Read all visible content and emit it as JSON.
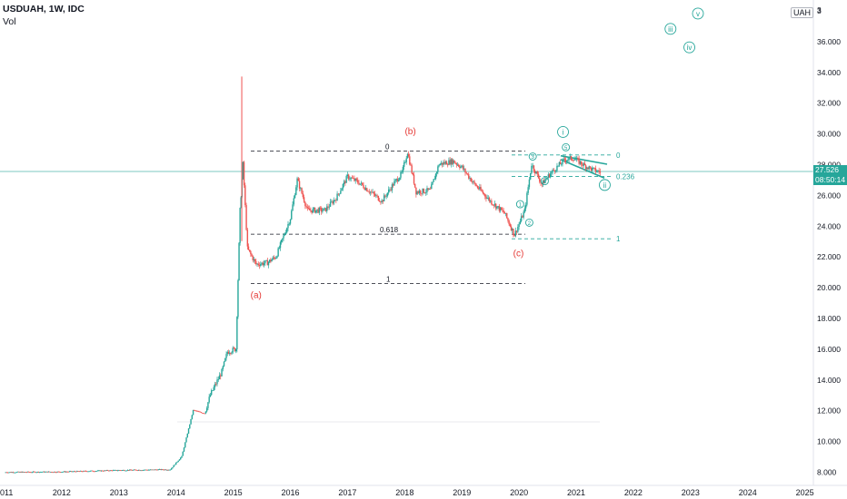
{
  "header": {
    "title": "USDUAH, 1W, IDC",
    "volume_label": "Vol"
  },
  "scale": {
    "currency": "UAH",
    "current_price": "27.526",
    "countdown": "08:50:14"
  },
  "colors": {
    "up": "#26a69a",
    "down": "#ef5350",
    "wave_label_red": "#e53935",
    "wave_label_teal": "#26a69a",
    "fib_line": "#131722",
    "current_line": "#26a69a"
  },
  "chart_data": {
    "type": "candlestick",
    "title": "USDUAH, 1W, IDC",
    "x_ticks": [
      "011",
      "2012",
      "2013",
      "2014",
      "2015",
      "2016",
      "2017",
      "2018",
      "2019",
      "2020",
      "2021",
      "2022",
      "2023",
      "2024",
      "2025"
    ],
    "y_ticks": [
      "8.000",
      "10.000",
      "12.000",
      "14.000",
      "16.000",
      "18.000",
      "20.000",
      "22.000",
      "24.000",
      "26.000",
      "28.000",
      "30.000",
      "32.000",
      "34.000",
      "36.000",
      "3"
    ],
    "ylim": [
      7.8,
      38.2
    ],
    "price_path": [
      [
        2011.0,
        7.97
      ],
      [
        2012.0,
        8.0
      ],
      [
        2013.0,
        8.1
      ],
      [
        2013.9,
        8.15
      ],
      [
        2014.1,
        9.0
      ],
      [
        2014.2,
        10.5
      ],
      [
        2014.3,
        12.0
      ],
      [
        2014.5,
        11.8
      ],
      [
        2014.6,
        13.0
      ],
      [
        2014.8,
        14.5
      ],
      [
        2014.9,
        15.8
      ],
      [
        2015.05,
        16.0
      ],
      [
        2015.12,
        25.0
      ],
      [
        2015.17,
        28.0
      ],
      [
        2015.25,
        22.5
      ],
      [
        2015.4,
        21.5
      ],
      [
        2015.6,
        21.6
      ],
      [
        2015.75,
        22.0
      ],
      [
        2015.9,
        23.5
      ],
      [
        2016.0,
        24.5
      ],
      [
        2016.12,
        27.0
      ],
      [
        2016.3,
        25.0
      ],
      [
        2016.6,
        25.0
      ],
      [
        2016.8,
        25.8
      ],
      [
        2017.0,
        27.2
      ],
      [
        2017.2,
        26.8
      ],
      [
        2017.4,
        26.2
      ],
      [
        2017.6,
        25.6
      ],
      [
        2017.8,
        26.7
      ],
      [
        2017.95,
        27.4
      ],
      [
        2018.05,
        28.8
      ],
      [
        2018.2,
        26.2
      ],
      [
        2018.45,
        26.3
      ],
      [
        2018.6,
        28.0
      ],
      [
        2018.85,
        28.2
      ],
      [
        2019.0,
        27.8
      ],
      [
        2019.2,
        26.8
      ],
      [
        2019.5,
        25.6
      ],
      [
        2019.75,
        24.8
      ],
      [
        2019.92,
        23.4
      ],
      [
        2020.1,
        25.0
      ],
      [
        2020.22,
        28.0
      ],
      [
        2020.4,
        26.7
      ],
      [
        2020.55,
        27.4
      ],
      [
        2020.8,
        28.3
      ],
      [
        2020.95,
        28.4
      ],
      [
        2021.15,
        27.9
      ],
      [
        2021.32,
        27.6
      ],
      [
        2021.42,
        27.5
      ]
    ],
    "fib_levels_left": [
      {
        "label": "0",
        "y": 28.85
      },
      {
        "label": "0.618",
        "y": 23.45
      },
      {
        "label": "1",
        "y": 20.25
      }
    ],
    "fib_levels_right": [
      {
        "label": "0",
        "y": 28.6
      },
      {
        "label": "0.236",
        "y": 27.2
      },
      {
        "label": "1",
        "y": 23.15
      }
    ],
    "wave_labels_red": [
      {
        "text": "(a)",
        "x": 2015.4,
        "y": 19.3
      },
      {
        "text": "(b)",
        "x": 2018.1,
        "y": 29.95
      },
      {
        "text": "(c)",
        "x": 2019.99,
        "y": 22.0
      }
    ],
    "wave_labels_teal": [
      {
        "text": "1",
        "x": 2020.02,
        "y": 25.4
      },
      {
        "text": "2",
        "x": 2020.18,
        "y": 24.2
      },
      {
        "text": "3",
        "x": 2020.24,
        "y": 28.5
      },
      {
        "text": "4",
        "x": 2020.45,
        "y": 26.9
      },
      {
        "text": "5",
        "x": 2020.82,
        "y": 29.1
      },
      {
        "text": "i",
        "x": 2020.77,
        "y": 30.1
      },
      {
        "text": "ii",
        "x": 2021.5,
        "y": 26.65
      },
      {
        "text": "iii",
        "x": 2022.65,
        "y": 36.8
      },
      {
        "text": "iv",
        "x": 2022.98,
        "y": 35.6
      },
      {
        "text": "v",
        "x": 2023.13,
        "y": 37.8
      }
    ],
    "current_price": 27.526,
    "grid": false,
    "legend": "none"
  }
}
